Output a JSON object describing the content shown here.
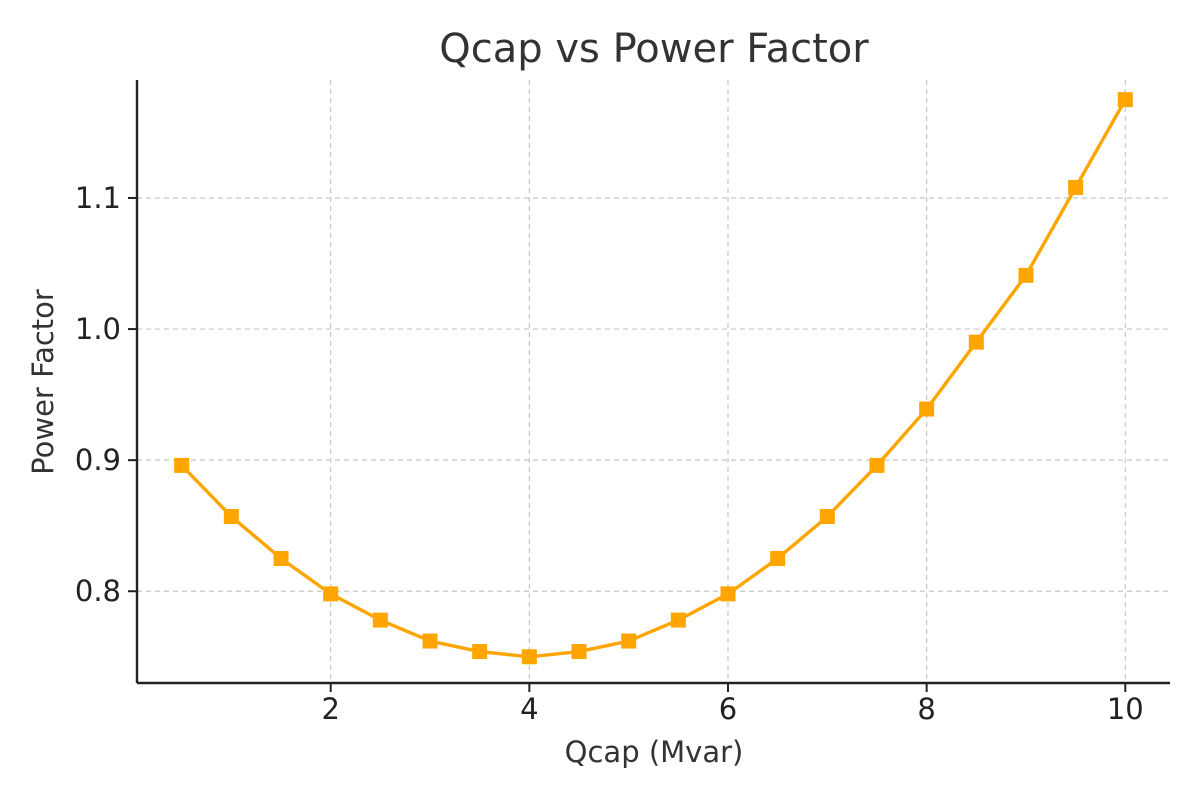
{
  "chart_data": {
    "type": "line",
    "title": "Qcap vs Power Factor",
    "xlabel": "Qcap (Mvar)",
    "ylabel": "Power Factor",
    "xlim": [
      0.05,
      10.45
    ],
    "ylim": [
      0.73,
      1.19
    ],
    "x_ticks": [
      2,
      4,
      6,
      8,
      10
    ],
    "x_tick_labels": [
      "2",
      "4",
      "6",
      "8",
      "10"
    ],
    "y_ticks": [
      0.8,
      0.9,
      1.0,
      1.1
    ],
    "y_tick_labels": [
      "0.8",
      "0.9",
      "1.0",
      "1.1"
    ],
    "grid": true,
    "series": [
      {
        "color": "#FFA500",
        "marker": "square",
        "x": [
          0.5,
          1.0,
          1.5,
          2.0,
          2.5,
          3.0,
          3.5,
          4.0,
          4.5,
          5.0,
          5.5,
          6.0,
          6.5,
          7.0,
          7.5,
          8.0,
          8.5,
          9.0,
          9.5,
          10.0
        ],
        "y": [
          0.896,
          0.857,
          0.825,
          0.798,
          0.778,
          0.762,
          0.754,
          0.75,
          0.754,
          0.762,
          0.778,
          0.798,
          0.825,
          0.857,
          0.896,
          0.939,
          0.99,
          1.041,
          1.108,
          1.175
        ]
      }
    ]
  }
}
